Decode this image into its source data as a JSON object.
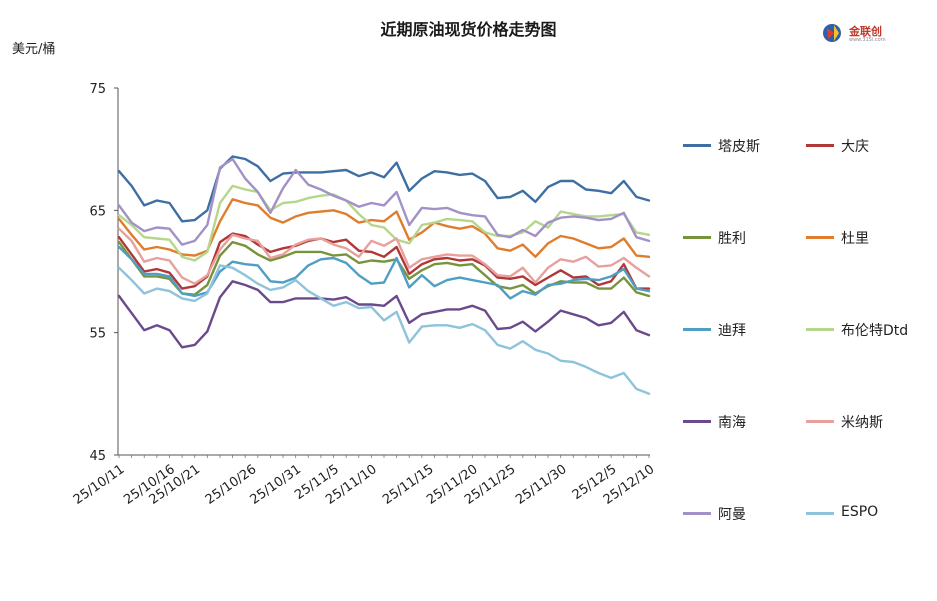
{
  "chart_data": {
    "type": "line",
    "title": "近期原油现货价格走势图",
    "ylabel": "美元/桶",
    "ylim": [
      45,
      75
    ],
    "yticks": [
      45,
      55,
      65,
      75
    ],
    "xticks": [
      "25/10/11",
      "25/10/16",
      "25/10/21",
      "25/10/26",
      "25/10/31",
      "25/11/5",
      "25/11/10",
      "25/11/15",
      "25/11/20",
      "25/11/25",
      "25/11/30",
      "25/12/5",
      "25/12/10"
    ],
    "x": [
      "25/10/11",
      "25/10/13",
      "25/10/14",
      "25/10/15",
      "25/10/16",
      "25/10/17",
      "25/10/21",
      "25/10/22",
      "25/10/23",
      "25/10/24",
      "25/10/27",
      "25/10/28",
      "25/10/29",
      "25/10/30",
      "25/10/31",
      "25/11/3",
      "25/11/4",
      "25/11/5",
      "25/11/6",
      "25/11/7",
      "25/11/10",
      "25/11/11",
      "25/11/12",
      "25/11/13",
      "25/11/14",
      "25/11/17",
      "25/11/18",
      "25/11/19",
      "25/11/20",
      "25/11/21",
      "25/11/24",
      "25/11/25",
      "25/11/26",
      "25/11/27",
      "25/11/28",
      "25/12/1",
      "25/12/2",
      "25/12/3",
      "25/12/4",
      "25/12/5",
      "25/12/8",
      "25/12/9",
      "25/12/10"
    ],
    "grid": false,
    "legend_position": "right",
    "series": [
      {
        "name": "塔皮斯",
        "color": "#3d6fa3",
        "values": [
          68.2,
          67,
          65.4,
          65.8,
          65.6,
          64.1,
          64.2,
          65,
          68.4,
          69.4,
          69.2,
          68.6,
          67.4,
          68,
          68.1,
          68.1,
          68.1,
          68.2,
          68.3,
          67.8,
          68.1,
          67.7,
          68.9,
          66.6,
          67.6,
          68.2,
          68.1,
          67.9,
          68,
          67.4,
          66,
          66.1,
          66.6,
          65.7,
          66.9,
          67.4,
          67.4,
          66.7,
          66.6,
          66.4,
          67.4,
          66.1,
          65.8
        ]
      },
      {
        "name": "大庆",
        "color": "#b03838",
        "values": [
          62.8,
          61.4,
          60,
          60.2,
          59.9,
          58.6,
          58.8,
          59.6,
          62.4,
          63.1,
          62.9,
          62.2,
          61.6,
          61.9,
          62.1,
          62.5,
          62.7,
          62.4,
          62.6,
          61.7,
          61.6,
          61.2,
          62,
          59.8,
          60.6,
          61,
          61.1,
          60.9,
          61,
          60.5,
          59.5,
          59.4,
          59.6,
          58.9,
          59.5,
          60.1,
          59.5,
          59.6,
          58.9,
          59.2,
          60.6,
          58.6,
          58.6
        ]
      },
      {
        "name": "胜利",
        "color": "#77933c",
        "values": [
          62.4,
          61,
          59.6,
          59.6,
          59.4,
          58.2,
          58.1,
          58.9,
          61.3,
          62.4,
          62.1,
          61.4,
          60.9,
          61.2,
          61.6,
          61.6,
          61.6,
          61.3,
          61.4,
          60.7,
          60.9,
          60.8,
          61,
          59.4,
          60.1,
          60.6,
          60.7,
          60.5,
          60.6,
          59.7,
          58.8,
          58.6,
          58.9,
          58.2,
          58.8,
          59.2,
          59.1,
          59.1,
          58.6,
          58.6,
          59.5,
          58.3,
          58
        ]
      },
      {
        "name": "杜里",
        "color": "#e07d2c",
        "values": [
          64.3,
          63,
          61.8,
          62,
          61.8,
          61.4,
          61.3,
          61.7,
          64.1,
          65.9,
          65.6,
          65.4,
          64.4,
          64,
          64.5,
          64.8,
          64.9,
          65,
          64.7,
          64,
          64.2,
          64.1,
          64.9,
          62.6,
          63.2,
          64,
          63.7,
          63.5,
          63.7,
          63.1,
          61.9,
          61.7,
          62.2,
          61.2,
          62.3,
          62.9,
          62.7,
          62.3,
          61.9,
          62,
          62.7,
          61.3,
          61.2
        ]
      },
      {
        "name": "迪拜",
        "color": "#4f9fc4",
        "values": [
          62,
          61,
          59.8,
          59.8,
          59.6,
          58.2,
          58,
          58.3,
          60,
          60.8,
          60.6,
          60.5,
          59.2,
          59.1,
          59.5,
          60.5,
          61,
          61.1,
          60.7,
          59.7,
          59,
          59.1,
          61.1,
          58.7,
          59.7,
          58.8,
          59.3,
          59.5,
          59.3,
          59.1,
          58.9,
          57.8,
          58.4,
          58.1,
          58.9,
          59,
          59.3,
          59.4,
          59.3,
          59.6,
          60.2,
          58.6,
          58.4
        ]
      },
      {
        "name": "布伦特Dtd",
        "color": "#b5d68c",
        "values": [
          64.6,
          63.8,
          62.8,
          62.7,
          62.6,
          61.2,
          60.9,
          61.6,
          65.6,
          67,
          66.7,
          66.5,
          65,
          65.6,
          65.7,
          66,
          66.2,
          66.3,
          65.8,
          64.7,
          63.8,
          63.6,
          62.6,
          62.3,
          63.8,
          64,
          64.3,
          64.2,
          64.1,
          63.2,
          62.9,
          62.9,
          63.2,
          64.1,
          63.6,
          64.9,
          64.7,
          64.5,
          64.5,
          64.6,
          64.7,
          63.2,
          63
        ]
      },
      {
        "name": "南海",
        "color": "#6a4a8c",
        "values": [
          58,
          56.6,
          55.2,
          55.6,
          55.2,
          53.8,
          54,
          55.1,
          57.9,
          59.2,
          58.9,
          58.5,
          57.5,
          57.5,
          57.8,
          57.8,
          57.8,
          57.7,
          57.9,
          57.3,
          57.3,
          57.2,
          58,
          55.8,
          56.5,
          56.7,
          56.9,
          56.9,
          57.2,
          56.8,
          55.3,
          55.4,
          55.9,
          55.1,
          55.9,
          56.8,
          56.5,
          56.2,
          55.6,
          55.8,
          56.7,
          55.2,
          54.8
        ]
      },
      {
        "name": "米纳斯",
        "color": "#e8a09c",
        "values": [
          63.5,
          62.5,
          60.8,
          61.1,
          60.9,
          59.5,
          59,
          59.7,
          61.8,
          63,
          62.7,
          62.5,
          61.1,
          61.4,
          62.2,
          62.6,
          62.7,
          62.2,
          61.9,
          61.2,
          62.5,
          62.1,
          62.7,
          60.3,
          61,
          61.2,
          61.4,
          61.3,
          61.3,
          60.6,
          59.7,
          59.6,
          60.3,
          59.1,
          60.3,
          61,
          60.8,
          61.2,
          60.4,
          60.5,
          61.1,
          60.3,
          59.6
        ]
      },
      {
        "name": "阿曼",
        "color": "#a291c6",
        "values": [
          65.4,
          64,
          63.3,
          63.6,
          63.5,
          62.2,
          62.5,
          63.8,
          68.5,
          69.2,
          67.6,
          66.5,
          64.8,
          66.8,
          68.3,
          67.1,
          66.7,
          66.2,
          65.8,
          65.3,
          65.6,
          65.4,
          66.5,
          63.8,
          65.2,
          65.1,
          65.2,
          64.8,
          64.6,
          64.5,
          63,
          62.8,
          63.4,
          62.9,
          64,
          64.4,
          64.5,
          64.4,
          64.2,
          64.3,
          64.8,
          62.8,
          62.5
        ]
      },
      {
        "name": "ESPO",
        "color": "#8fc3dc",
        "values": [
          60.3,
          59.3,
          58.2,
          58.6,
          58.4,
          57.8,
          57.6,
          58.2,
          60.5,
          60.3,
          59.7,
          59,
          58.5,
          58.7,
          59.3,
          58.4,
          57.8,
          57.2,
          57.5,
          57,
          57.1,
          56,
          56.7,
          54.2,
          55.5,
          55.6,
          55.6,
          55.4,
          55.7,
          55.2,
          54,
          53.7,
          54.3,
          53.6,
          53.3,
          52.7,
          52.6,
          52.2,
          51.7,
          51.3,
          51.7,
          50.4,
          50
        ]
      }
    ]
  },
  "header": {
    "unit_label": "美元/桶",
    "logo_text": "金联创",
    "logo_sub": "www.315i.com"
  }
}
